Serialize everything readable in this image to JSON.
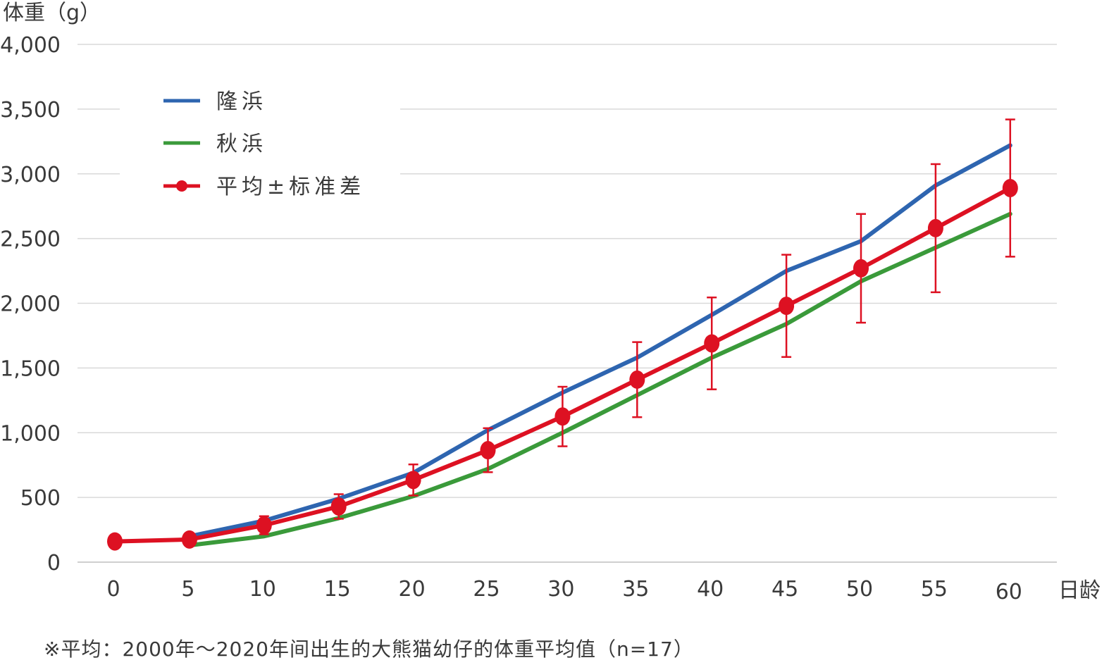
{
  "chart_data": {
    "type": "line",
    "ylabel": "体重（g）",
    "xlabel": "日龄",
    "x": [
      0,
      5,
      10,
      15,
      20,
      25,
      30,
      35,
      40,
      45,
      50,
      55,
      60
    ],
    "ylim": [
      0,
      4000
    ],
    "yticks": [
      "0",
      "500",
      "1,000",
      "1,500",
      "2,000",
      "2,500",
      "3,000",
      "3,500",
      "4,000"
    ],
    "ytick_values": [
      0,
      500,
      1000,
      1500,
      2000,
      2500,
      3000,
      3500,
      4000
    ],
    "grid": "horizontal",
    "legend_position": "top-left",
    "series": [
      {
        "name": "隆浜",
        "color": "#2E65B0",
        "x": [
          5,
          10,
          15,
          20,
          25,
          30,
          35,
          40,
          45,
          50,
          55,
          60
        ],
        "values": [
          200,
          320,
          490,
          690,
          1020,
          1310,
          1580,
          1910,
          2250,
          2480,
          2910,
          3220
        ]
      },
      {
        "name": "秋浜",
        "color": "#3A9A3A",
        "x": [
          5,
          10,
          15,
          20,
          25,
          30,
          35,
          40,
          45,
          50,
          55,
          60
        ],
        "values": [
          130,
          200,
          340,
          510,
          720,
          1000,
          1290,
          1580,
          1840,
          2170,
          2430,
          2690
        ]
      },
      {
        "name": "平均±标准差",
        "color": "#DD1122",
        "markers": true,
        "x": [
          0,
          5,
          10,
          15,
          20,
          25,
          30,
          35,
          40,
          45,
          50,
          55,
          60
        ],
        "values": [
          160,
          175,
          285,
          430,
          635,
          865,
          1125,
          1410,
          1690,
          1980,
          2270,
          2580,
          2890
        ],
        "error": [
          0,
          25,
          70,
          95,
          120,
          170,
          230,
          290,
          355,
          395,
          420,
          495,
          530
        ]
      }
    ]
  },
  "footnote": "※平均：2000年～2020年间出生的大熊猫幼仔的体重平均值（n=17）"
}
